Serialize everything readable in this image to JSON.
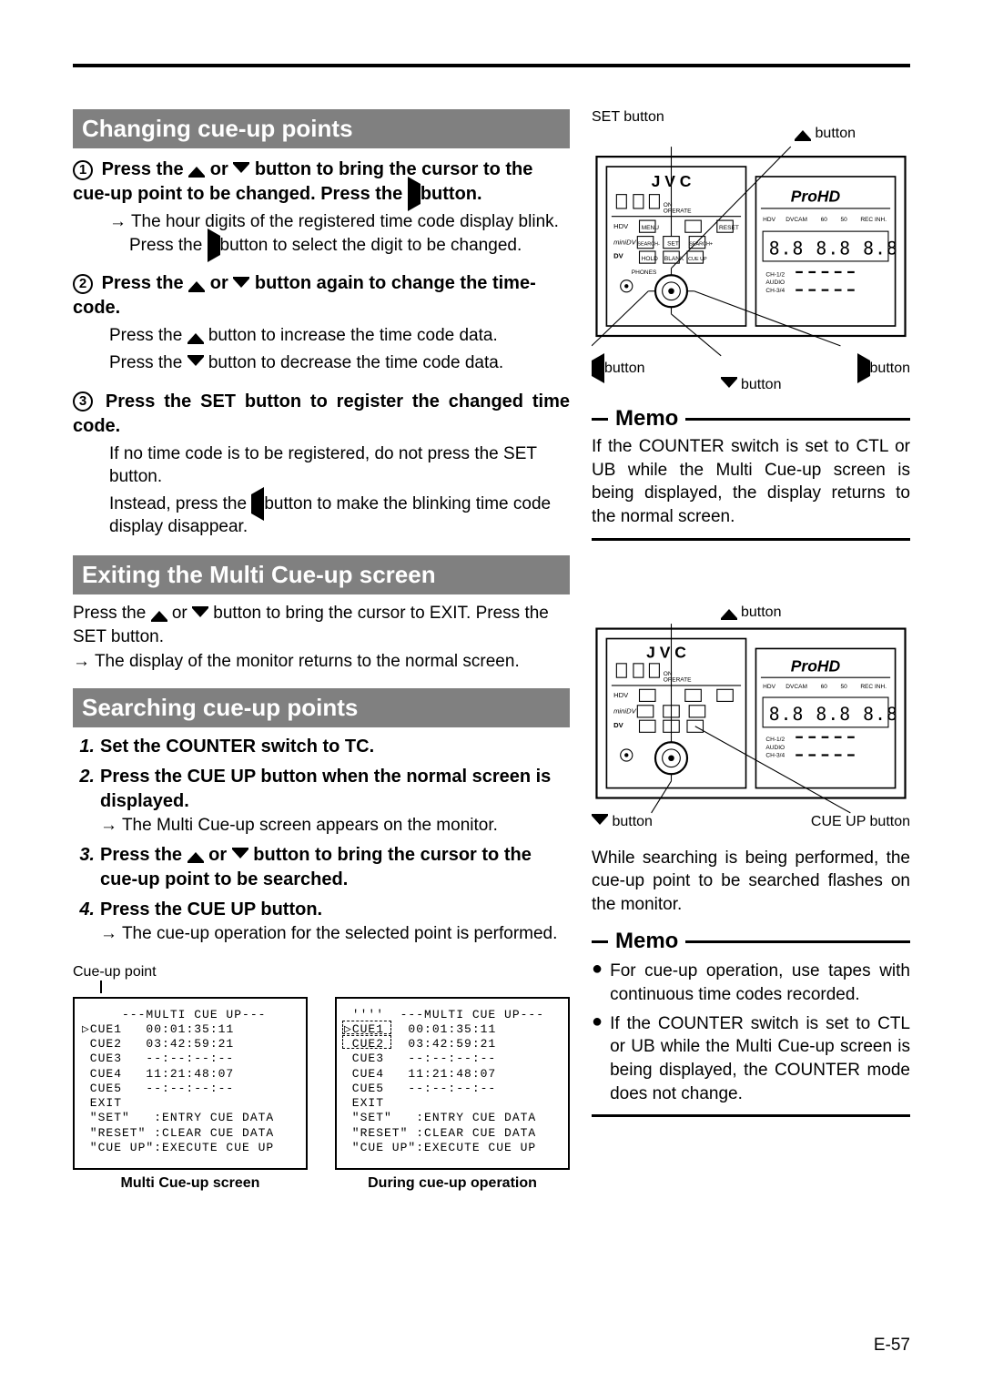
{
  "headers": {
    "changing": "Changing cue-up points",
    "exiting": "Exiting the Multi Cue-up screen",
    "searching": "Searching cue-up points"
  },
  "changing": {
    "s1a": "Press the ",
    "s1b": " or ",
    "s1c": " button to bring the cursor to the cue-up point to be changed. Press the ",
    "s1d": " button.",
    "s1_body1": "The hour digits of the registered time code display blink.",
    "s1_body2a": "Press the ",
    "s1_body2b": " button to select the digit to be changed.",
    "s2a": "Press the ",
    "s2b": " or ",
    "s2c": " button again to change the time-code.",
    "s2_b1a": "Press the ",
    "s2_b1b": " button to increase the time code data.",
    "s2_b2a": "Press the ",
    "s2_b2b": " button to decrease the time code data.",
    "s3": "Press the SET button to register the changed time code.",
    "s3_b1": "If no time code is to be registered, do not press the SET button.",
    "s3_b2a": "Instead, press the ",
    "s3_b2b": " button to make the blinking time code display disappear."
  },
  "exiting": {
    "p1a": "Press the ",
    "p1b": " or ",
    "p1c": " button to bring the cursor to EXIT. Press the SET button.",
    "p2": "The display of the monitor returns to the normal screen."
  },
  "searching": {
    "n1": "1.",
    "t1": "Set the COUNTER switch to TC.",
    "n2": "2.",
    "t2": "Press the CUE UP button when the normal screen is displayed.",
    "t2b": "The Multi Cue-up screen appears on the monitor.",
    "n3": "3.",
    "t3a": "Press the ",
    "t3b": " or ",
    "t3c": " button to bring the cursor to the cue-up point to be searched.",
    "n4": "4.",
    "t4": "Press the CUE UP button.",
    "t4b": "The cue-up operation for the selected point is performed."
  },
  "cue_label": "Cue-up point",
  "screens": {
    "left_caption": "Multi Cue-up screen",
    "right_caption": "During cue-up operation",
    "header": "---MULTI CUE UP---",
    "rows": [
      [
        "▷CUE1",
        "00:01:35:11"
      ],
      [
        " CUE2",
        "03:42:59:21"
      ],
      [
        " CUE3",
        "--:--:--:--"
      ],
      [
        " CUE4",
        "11:21:48:07"
      ],
      [
        " CUE5",
        "--:--:--:--"
      ],
      [
        " EXIT",
        ""
      ]
    ],
    "footer": [
      "\"SET\"   :ENTRY CUE DATA",
      "\"RESET\" :CLEAR CUE DATA",
      "\"CUE UP\":EXECUTE CUE UP"
    ]
  },
  "memo1": {
    "title": "Memo",
    "body": "If the COUNTER switch is set to CTL or UB while the Multi Cue-up screen is being displayed, the display returns to the normal screen."
  },
  "right_mid_text": "While searching is being performed, the cue-up point to be searched flashes on the monitor.",
  "memo2": {
    "title": "Memo",
    "b1": "For cue-up operation, use tapes with continuous time codes recorded.",
    "b2": "If the COUNTER switch is set to CTL or UB while the Multi Cue-up screen is being displayed, the COUNTER mode does not change."
  },
  "dev_labels": {
    "set": "SET button",
    "up": "button",
    "down": "button",
    "left": "button",
    "right": "button",
    "cueup": "CUE UP button"
  },
  "pagefoot": "E-57",
  "colors": {
    "hdr_bg": "#808080",
    "hdr_fg": "#ffffff",
    "line": "#000000"
  }
}
